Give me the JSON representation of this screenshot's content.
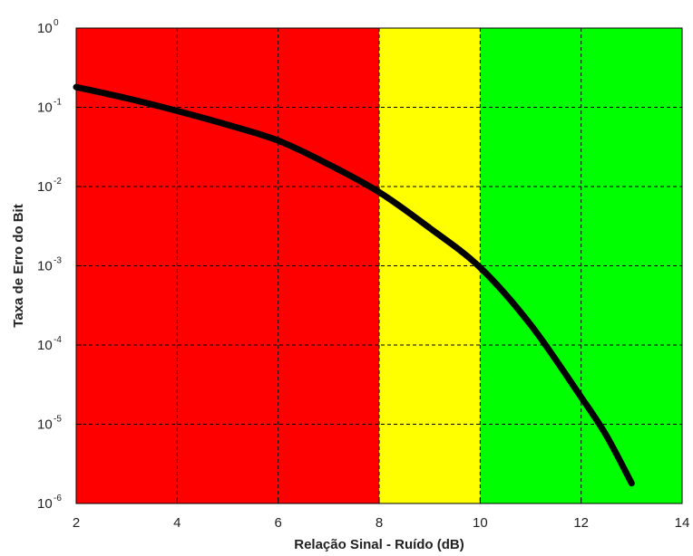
{
  "chart_data": {
    "type": "line",
    "title": "",
    "xlabel": "Relação Sinal - Ruído (dB)",
    "ylabel": "Taxa de Erro do Bit",
    "xlim": [
      2,
      14
    ],
    "ylim": [
      1e-06,
      1
    ],
    "yscale": "log",
    "grid": true,
    "grid_style": "dashed",
    "legend": "none",
    "x_ticks": [
      2,
      4,
      6,
      8,
      10,
      12,
      14
    ],
    "x_tick_labels": [
      "2",
      "4",
      "6",
      "8",
      "10",
      "12",
      "14"
    ],
    "y_ticks": [
      {
        "value": 1,
        "base": "10",
        "exp": "0"
      },
      {
        "value": 0.1,
        "base": "10",
        "exp": "-1"
      },
      {
        "value": 0.01,
        "base": "10",
        "exp": "-2"
      },
      {
        "value": 0.001,
        "base": "10",
        "exp": "-3"
      },
      {
        "value": 0.0001,
        "base": "10",
        "exp": "-4"
      },
      {
        "value": 1e-05,
        "base": "10",
        "exp": "-5"
      },
      {
        "value": 1e-06,
        "base": "10",
        "exp": "-6"
      }
    ],
    "regions": [
      {
        "x_from": 2,
        "x_to": 8,
        "color": "#ff0000"
      },
      {
        "x_from": 8,
        "x_to": 10,
        "color": "#ffff00"
      },
      {
        "x_from": 10,
        "x_to": 14,
        "color": "#00ff00"
      }
    ],
    "series": [
      {
        "color": "#000000",
        "x": [
          2,
          3,
          4,
          5,
          6,
          7,
          8,
          9,
          10,
          11,
          12,
          12.5,
          13
        ],
        "y": [
          0.18,
          0.13,
          0.09,
          0.06,
          0.038,
          0.019,
          0.0085,
          0.003,
          0.00095,
          0.00018,
          2.2e-05,
          7.2e-06,
          1.8e-06
        ]
      }
    ]
  }
}
